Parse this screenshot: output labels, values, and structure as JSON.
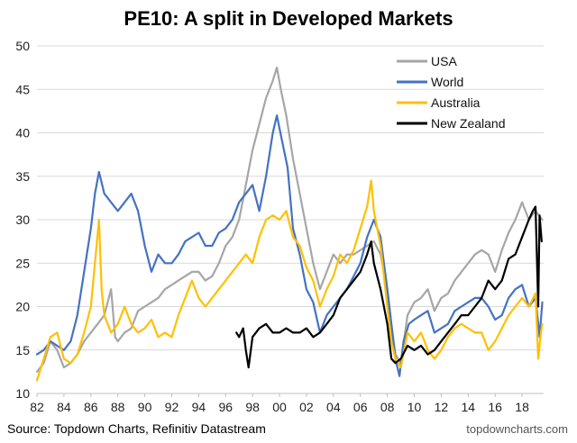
{
  "chart_data": {
    "type": "line",
    "title": "PE10: A split in Developed Markets",
    "xlabel": "",
    "ylabel": "",
    "xlim": [
      1982,
      2019.6
    ],
    "ylim": [
      10,
      50
    ],
    "yticks": [
      10,
      15,
      20,
      25,
      30,
      35,
      40,
      45,
      50
    ],
    "xtick_values": [
      1982,
      1984,
      1986,
      1988,
      1990,
      1992,
      1994,
      1996,
      1998,
      2000,
      2002,
      2004,
      2006,
      2008,
      2010,
      2012,
      2014,
      2016,
      2018
    ],
    "xtick_labels": [
      "82",
      "84",
      "86",
      "88",
      "90",
      "92",
      "94",
      "96",
      "98",
      "00",
      "02",
      "04",
      "06",
      "08",
      "10",
      "12",
      "14",
      "16",
      "18"
    ],
    "grid": true,
    "legend_position": "top-right",
    "series": [
      {
        "name": "USA",
        "color": "#a6a6a6",
        "points": [
          [
            1982,
            12.5
          ],
          [
            1982.5,
            13.5
          ],
          [
            1983,
            16
          ],
          [
            1983.5,
            15
          ],
          [
            1984,
            13
          ],
          [
            1984.5,
            13.5
          ],
          [
            1985,
            14.5
          ],
          [
            1985.5,
            16
          ],
          [
            1986,
            17
          ],
          [
            1986.5,
            18
          ],
          [
            1987,
            19
          ],
          [
            1987.5,
            22
          ],
          [
            1987.8,
            16.5
          ],
          [
            1988,
            16
          ],
          [
            1988.5,
            17
          ],
          [
            1989,
            17.5
          ],
          [
            1989.5,
            19.5
          ],
          [
            1990,
            20
          ],
          [
            1990.5,
            20.5
          ],
          [
            1991,
            21
          ],
          [
            1991.5,
            22
          ],
          [
            1992,
            22.5
          ],
          [
            1992.5,
            23
          ],
          [
            1993,
            23.5
          ],
          [
            1993.5,
            24
          ],
          [
            1994,
            24
          ],
          [
            1994.5,
            23
          ],
          [
            1995,
            23.5
          ],
          [
            1995.5,
            25
          ],
          [
            1996,
            27
          ],
          [
            1996.5,
            28
          ],
          [
            1997,
            30
          ],
          [
            1997.5,
            34
          ],
          [
            1998,
            38
          ],
          [
            1998.5,
            41
          ],
          [
            1999,
            44
          ],
          [
            1999.5,
            46
          ],
          [
            1999.8,
            47.5
          ],
          [
            2000.1,
            45
          ],
          [
            2000.5,
            42
          ],
          [
            2001,
            37
          ],
          [
            2001.5,
            33
          ],
          [
            2002,
            29
          ],
          [
            2002.5,
            25
          ],
          [
            2003,
            22
          ],
          [
            2003.5,
            24
          ],
          [
            2004,
            26
          ],
          [
            2004.5,
            25
          ],
          [
            2005,
            26
          ],
          [
            2005.5,
            26
          ],
          [
            2006,
            26.5
          ],
          [
            2006.5,
            27
          ],
          [
            2007,
            27.5
          ],
          [
            2007.5,
            26
          ],
          [
            2008,
            22
          ],
          [
            2008.3,
            18
          ],
          [
            2008.6,
            14.5
          ],
          [
            2009,
            13.5
          ],
          [
            2009.5,
            19
          ],
          [
            2010,
            20.5
          ],
          [
            2010.5,
            21
          ],
          [
            2011,
            22
          ],
          [
            2011.5,
            19.5
          ],
          [
            2012,
            21
          ],
          [
            2012.5,
            21.5
          ],
          [
            2013,
            23
          ],
          [
            2013.5,
            24
          ],
          [
            2014,
            25
          ],
          [
            2014.5,
            26
          ],
          [
            2015,
            26.5
          ],
          [
            2015.5,
            26
          ],
          [
            2016,
            24
          ],
          [
            2016.5,
            26.5
          ],
          [
            2017,
            28.5
          ],
          [
            2017.5,
            30
          ],
          [
            2018,
            32
          ],
          [
            2018.5,
            30
          ],
          [
            2019,
            31
          ],
          [
            2019.5,
            30
          ]
        ]
      },
      {
        "name": "World",
        "color": "#4472c4",
        "points": [
          [
            1982,
            14.5
          ],
          [
            1982.5,
            15
          ],
          [
            1983,
            16
          ],
          [
            1983.5,
            15.5
          ],
          [
            1984,
            15
          ],
          [
            1984.5,
            16
          ],
          [
            1985,
            19
          ],
          [
            1985.5,
            24
          ],
          [
            1986,
            29
          ],
          [
            1986.3,
            33
          ],
          [
            1986.6,
            35.5
          ],
          [
            1987,
            33
          ],
          [
            1987.5,
            32
          ],
          [
            1988,
            31
          ],
          [
            1988.5,
            32
          ],
          [
            1989,
            33
          ],
          [
            1989.5,
            31
          ],
          [
            1990,
            27
          ],
          [
            1990.5,
            24
          ],
          [
            1991,
            26
          ],
          [
            1991.5,
            25
          ],
          [
            1992,
            25
          ],
          [
            1992.5,
            26
          ],
          [
            1993,
            27.5
          ],
          [
            1993.5,
            28
          ],
          [
            1994,
            28.5
          ],
          [
            1994.5,
            27
          ],
          [
            1995,
            27
          ],
          [
            1995.5,
            28.5
          ],
          [
            1996,
            29
          ],
          [
            1996.5,
            30
          ],
          [
            1997,
            32
          ],
          [
            1997.5,
            33
          ],
          [
            1998,
            34
          ],
          [
            1998.5,
            31
          ],
          [
            1999,
            35
          ],
          [
            1999.5,
            40
          ],
          [
            1999.8,
            42
          ],
          [
            2000.2,
            39
          ],
          [
            2000.6,
            36
          ],
          [
            2001,
            29
          ],
          [
            2001.5,
            26
          ],
          [
            2002,
            22
          ],
          [
            2002.5,
            20.5
          ],
          [
            2003,
            17
          ],
          [
            2003.5,
            19
          ],
          [
            2004,
            20
          ],
          [
            2004.5,
            21
          ],
          [
            2005,
            22
          ],
          [
            2005.5,
            23.5
          ],
          [
            2006,
            25
          ],
          [
            2006.5,
            28
          ],
          [
            2007,
            30
          ],
          [
            2007.5,
            28
          ],
          [
            2008,
            22
          ],
          [
            2008.3,
            18
          ],
          [
            2008.6,
            14
          ],
          [
            2008.9,
            12
          ],
          [
            2009.2,
            16
          ],
          [
            2009.6,
            18
          ],
          [
            2010,
            18.5
          ],
          [
            2010.5,
            19
          ],
          [
            2011,
            19.5
          ],
          [
            2011.5,
            17
          ],
          [
            2012,
            17.5
          ],
          [
            2012.5,
            18
          ],
          [
            2013,
            19.5
          ],
          [
            2013.5,
            20
          ],
          [
            2014,
            20.5
          ],
          [
            2014.5,
            21
          ],
          [
            2015,
            21
          ],
          [
            2015.5,
            20
          ],
          [
            2016,
            18.5
          ],
          [
            2016.5,
            19
          ],
          [
            2017,
            21
          ],
          [
            2017.5,
            22
          ],
          [
            2018,
            22.5
          ],
          [
            2018.5,
            20
          ],
          [
            2019,
            21
          ],
          [
            2019.3,
            16.5
          ],
          [
            2019.5,
            20.5
          ]
        ]
      },
      {
        "name": "Australia",
        "color": "#ffc000",
        "points": [
          [
            1982,
            11.5
          ],
          [
            1982.5,
            14
          ],
          [
            1983,
            16.5
          ],
          [
            1983.5,
            17
          ],
          [
            1984,
            14
          ],
          [
            1984.5,
            13.5
          ],
          [
            1985,
            14.5
          ],
          [
            1985.5,
            17
          ],
          [
            1986,
            20
          ],
          [
            1986.3,
            25
          ],
          [
            1986.6,
            30
          ],
          [
            1986.8,
            22
          ],
          [
            1987,
            19
          ],
          [
            1987.5,
            17
          ],
          [
            1988,
            18
          ],
          [
            1988.5,
            20
          ],
          [
            1989,
            18
          ],
          [
            1989.5,
            17
          ],
          [
            1990,
            17.5
          ],
          [
            1990.5,
            18.5
          ],
          [
            1991,
            16.5
          ],
          [
            1991.5,
            17
          ],
          [
            1992,
            16.5
          ],
          [
            1992.5,
            19
          ],
          [
            1993,
            21
          ],
          [
            1993.5,
            23
          ],
          [
            1994,
            21
          ],
          [
            1994.5,
            20
          ],
          [
            1995,
            21
          ],
          [
            1995.5,
            22
          ],
          [
            1996,
            23
          ],
          [
            1996.5,
            24
          ],
          [
            1997,
            25
          ],
          [
            1997.5,
            26
          ],
          [
            1998,
            25
          ],
          [
            1998.5,
            28
          ],
          [
            1999,
            30
          ],
          [
            1999.5,
            30.5
          ],
          [
            2000,
            30
          ],
          [
            2000.5,
            31
          ],
          [
            2001,
            28
          ],
          [
            2001.5,
            27
          ],
          [
            2002,
            24.5
          ],
          [
            2002.5,
            23
          ],
          [
            2003,
            20
          ],
          [
            2003.5,
            22
          ],
          [
            2004,
            23.5
          ],
          [
            2004.5,
            26
          ],
          [
            2005,
            25
          ],
          [
            2005.5,
            26.5
          ],
          [
            2006,
            29
          ],
          [
            2006.5,
            31.5
          ],
          [
            2006.8,
            34.5
          ],
          [
            2007,
            31
          ],
          [
            2007.5,
            27
          ],
          [
            2008,
            20
          ],
          [
            2008.3,
            16
          ],
          [
            2008.6,
            14
          ],
          [
            2009,
            13
          ],
          [
            2009.5,
            17
          ],
          [
            2010,
            16
          ],
          [
            2010.5,
            17
          ],
          [
            2011,
            15
          ],
          [
            2011.5,
            14
          ],
          [
            2012,
            15
          ],
          [
            2012.5,
            16.5
          ],
          [
            2013,
            17.5
          ],
          [
            2013.5,
            18
          ],
          [
            2014,
            17.5
          ],
          [
            2014.5,
            17
          ],
          [
            2015,
            17
          ],
          [
            2015.5,
            15
          ],
          [
            2016,
            16
          ],
          [
            2016.5,
            17.5
          ],
          [
            2017,
            19
          ],
          [
            2017.5,
            20
          ],
          [
            2018,
            21
          ],
          [
            2018.5,
            20
          ],
          [
            2019,
            21.5
          ],
          [
            2019.2,
            14
          ],
          [
            2019.4,
            17
          ],
          [
            2019.5,
            18
          ]
        ]
      },
      {
        "name": "New Zealand",
        "color": "#000000",
        "points": [
          [
            1996.8,
            17
          ],
          [
            1997,
            16.5
          ],
          [
            1997.3,
            17.5
          ],
          [
            1997.5,
            15
          ],
          [
            1997.7,
            13
          ],
          [
            1998,
            16.5
          ],
          [
            1998.5,
            17.5
          ],
          [
            1999,
            18
          ],
          [
            1999.5,
            17
          ],
          [
            2000,
            17
          ],
          [
            2000.5,
            17.5
          ],
          [
            2001,
            17
          ],
          [
            2001.5,
            17
          ],
          [
            2002,
            17.5
          ],
          [
            2002.5,
            16.5
          ],
          [
            2003,
            17
          ],
          [
            2003.5,
            18
          ],
          [
            2004,
            19
          ],
          [
            2004.5,
            21
          ],
          [
            2005,
            22
          ],
          [
            2005.5,
            23
          ],
          [
            2006,
            24
          ],
          [
            2006.5,
            26
          ],
          [
            2006.8,
            27.5
          ],
          [
            2007,
            25
          ],
          [
            2007.5,
            22
          ],
          [
            2008,
            18
          ],
          [
            2008.3,
            14
          ],
          [
            2008.6,
            13.5
          ],
          [
            2009,
            14
          ],
          [
            2009.5,
            15.5
          ],
          [
            2010,
            15
          ],
          [
            2010.5,
            15.5
          ],
          [
            2011,
            14.5
          ],
          [
            2011.5,
            15
          ],
          [
            2012,
            16
          ],
          [
            2012.5,
            17
          ],
          [
            2013,
            18
          ],
          [
            2013.5,
            19
          ],
          [
            2014,
            19
          ],
          [
            2014.5,
            20
          ],
          [
            2015,
            21
          ],
          [
            2015.5,
            23
          ],
          [
            2016,
            22
          ],
          [
            2016.5,
            23
          ],
          [
            2017,
            25.5
          ],
          [
            2017.5,
            26
          ],
          [
            2018,
            28
          ],
          [
            2018.5,
            30
          ],
          [
            2018.8,
            31
          ],
          [
            2019,
            31.5
          ],
          [
            2019.2,
            20
          ],
          [
            2019.3,
            30.5
          ],
          [
            2019.45,
            27.5
          ]
        ]
      }
    ],
    "source": "Source: Topdown Charts, Refinitiv Datastream",
    "watermark": "topdowncharts.com"
  }
}
